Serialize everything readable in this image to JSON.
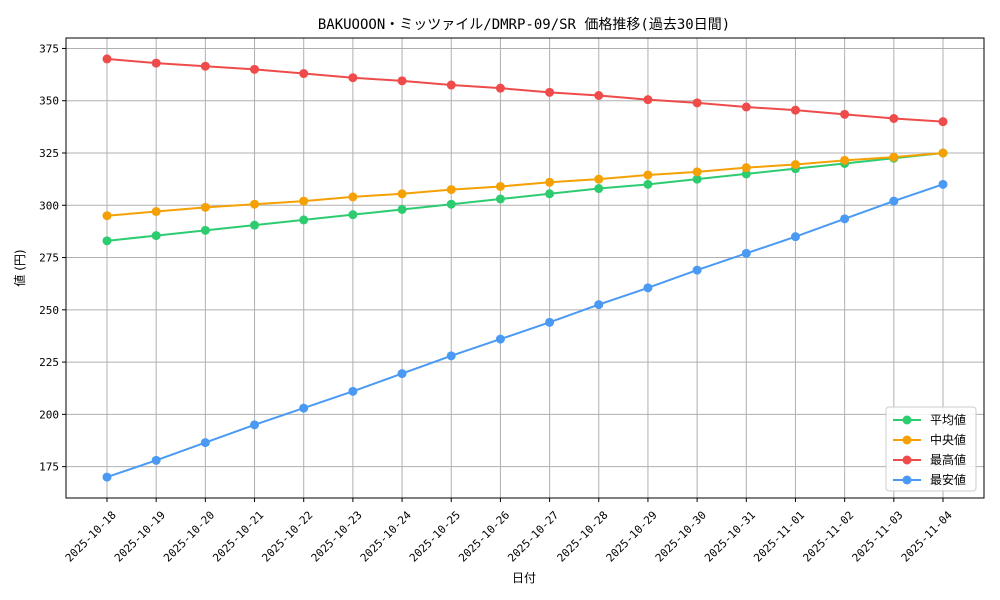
{
  "chart_data": {
    "type": "line",
    "title": "BAKUOOON・ミッツァイル/DMRP-09/SR 価格推移(過去30日間)",
    "xlabel": "日付",
    "ylabel": "値 (円)",
    "ylim": [
      160,
      380
    ],
    "yticks": [
      175,
      200,
      225,
      250,
      275,
      300,
      325,
      350,
      375
    ],
    "grid": true,
    "legend_position": "bottom-right",
    "categories": [
      "2025-10-18",
      "2025-10-19",
      "2025-10-20",
      "2025-10-21",
      "2025-10-22",
      "2025-10-23",
      "2025-10-24",
      "2025-10-25",
      "2025-10-26",
      "2025-10-27",
      "2025-10-28",
      "2025-10-29",
      "2025-10-30",
      "2025-10-31",
      "2025-11-01",
      "2025-11-02",
      "2025-11-03",
      "2025-11-04"
    ],
    "series": [
      {
        "name": "平均値",
        "color": "#2ecc71",
        "values": [
          283,
          285.5,
          288,
          290.5,
          293,
          295.5,
          298,
          300.5,
          303,
          305.5,
          308,
          310,
          312.5,
          315,
          317.5,
          320,
          322.5,
          325
        ]
      },
      {
        "name": "中央値",
        "color": "#f5a105",
        "values": [
          295,
          297,
          299,
          300.5,
          302,
          304,
          305.5,
          307.5,
          309,
          311,
          312.5,
          314.5,
          316,
          318,
          319.5,
          321.5,
          323,
          325
        ]
      },
      {
        "name": "最高値",
        "color": "#ef4b4b",
        "values": [
          370,
          368,
          366.5,
          365,
          363,
          361,
          359.5,
          357.5,
          356,
          354,
          352.5,
          350.5,
          349,
          347,
          345.5,
          343.5,
          341.5,
          340
        ]
      },
      {
        "name": "最安値",
        "color": "#4a9af4",
        "values": [
          170,
          178,
          186.5,
          195,
          203,
          211,
          219.5,
          228,
          236,
          244,
          252.5,
          260.5,
          269,
          277,
          285,
          293.5,
          302,
          310
        ]
      }
    ]
  }
}
